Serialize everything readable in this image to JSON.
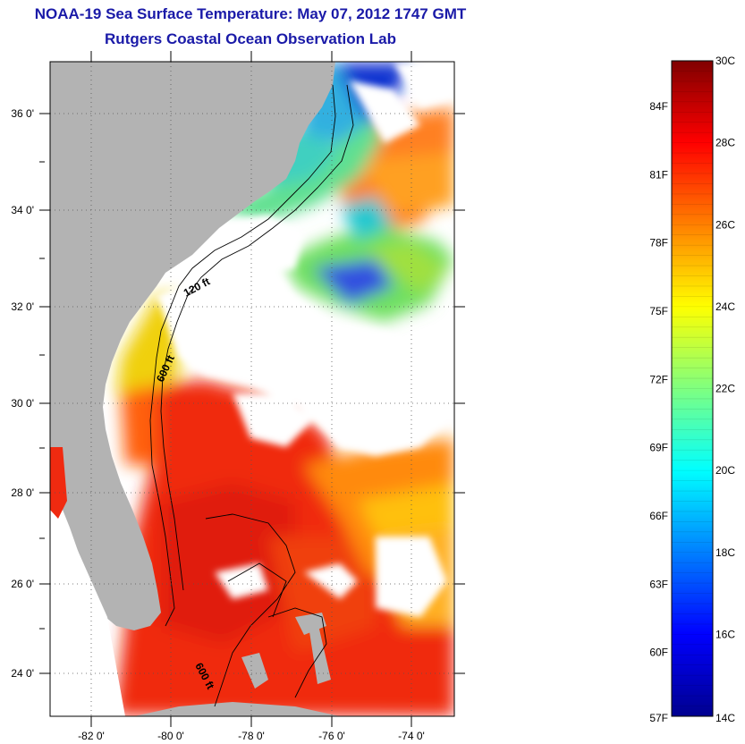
{
  "header": {
    "title": "NOAA-19 Sea Surface Temperature:  May 07, 2012 1747 GMT",
    "subtitle": "Rutgers Coastal Ocean Observation Lab"
  },
  "map": {
    "projection": "lat-lon",
    "lon_range": [
      -83.0,
      -72.8
    ],
    "lat_range": [
      23.0,
      37.1
    ],
    "lat_ticks": [
      {
        "value": 24,
        "label": "24 0'"
      },
      {
        "value": 26,
        "label": "26 0'"
      },
      {
        "value": 28,
        "label": "28 0'"
      },
      {
        "value": 30,
        "label": "30 0'"
      },
      {
        "value": 32,
        "label": "32 0'"
      },
      {
        "value": 34,
        "label": "34 0'"
      },
      {
        "value": 36,
        "label": "36 0'"
      }
    ],
    "lon_ticks": [
      {
        "value": -82,
        "label": "-82 0'"
      },
      {
        "value": -80,
        "label": "-80 0'"
      },
      {
        "value": -78,
        "label": "-78 0'"
      },
      {
        "value": -76,
        "label": "-76 0'"
      },
      {
        "value": -74,
        "label": "-74 0'"
      }
    ],
    "grid": "dotted",
    "contours": [
      {
        "label": "120 ft"
      },
      {
        "label": "600 ft"
      },
      {
        "label": "600 ft"
      }
    ],
    "colors": {
      "land": "#b3b3b3",
      "no_data": "#ffffff",
      "contour": "#000000"
    }
  },
  "colorbar": {
    "celsius_range": [
      14,
      30
    ],
    "celsius_labels": [
      "30C",
      "28C",
      "26C",
      "24C",
      "22C",
      "20C",
      "18C",
      "16C",
      "14C"
    ],
    "fahrenheit_labels": [
      {
        "value": 84,
        "label": "84F"
      },
      {
        "value": 81,
        "label": "81F"
      },
      {
        "value": 78,
        "label": "78F"
      },
      {
        "value": 75,
        "label": "75F"
      },
      {
        "value": 72,
        "label": "72F"
      },
      {
        "value": 69,
        "label": "69F"
      },
      {
        "value": 66,
        "label": "66F"
      },
      {
        "value": 63,
        "label": "63F"
      },
      {
        "value": 60,
        "label": "60F"
      },
      {
        "value": 57,
        "label": "57F"
      }
    ],
    "colormap": "jet",
    "jet_stops": [
      "#00008f",
      "#0000ff",
      "#00ffff",
      "#ffff00",
      "#ff0000",
      "#800000"
    ]
  }
}
